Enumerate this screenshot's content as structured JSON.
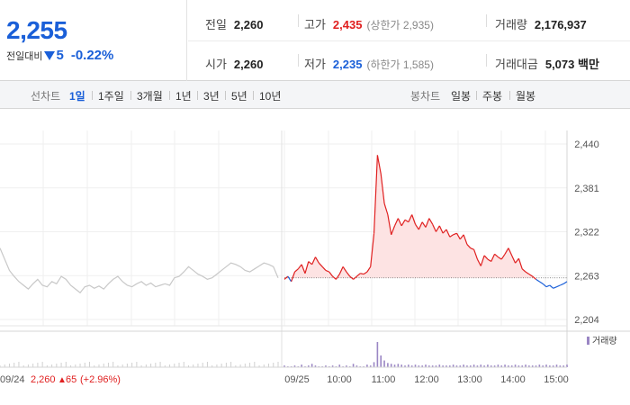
{
  "quote": {
    "price": "2,255",
    "change_label": "전일대비",
    "change_value": "5",
    "change_pct": "-0.22%",
    "prev_close": {
      "label": "전일",
      "value": "2,260"
    },
    "open": {
      "label": "시가",
      "value": "2,260"
    },
    "high": {
      "label": "고가",
      "value": "2,435",
      "limit_text": "(상한가 2,935)"
    },
    "low": {
      "label": "저가",
      "value": "2,235",
      "limit_text": "(하한가 1,585)"
    },
    "volume": {
      "label": "거래량",
      "value": "2,176,937"
    },
    "trade_amount": {
      "label": "거래대금",
      "value": "5,073 백만"
    }
  },
  "toolbar": {
    "line_chart_label": "선차트",
    "periods": [
      "1일",
      "1주일",
      "3개월",
      "1년",
      "3년",
      "5년",
      "10년"
    ],
    "active_period": "1일",
    "candle_chart_label": "봉차트",
    "candle_periods": [
      "일봉",
      "주봉",
      "월봉"
    ]
  },
  "colors": {
    "up": "#e02020",
    "down": "#1a5fd8",
    "prev_day_line": "#c8c8c8",
    "up_fill": "#fde3e3",
    "volume_bar": "#9a86c4"
  },
  "chart_data": {
    "type": "line",
    "y_ticks": [
      "2,440",
      "2,381",
      "2,322",
      "2,263",
      "2,204"
    ],
    "ylim": [
      2204,
      2440
    ],
    "base_price": 2260,
    "x_tick_labels": [
      "09/25",
      "10:00",
      "11:00",
      "12:00",
      "13:00",
      "14:00",
      "15:00"
    ],
    "prev_day_label": "09/24",
    "prev_day_close": "2,260",
    "prev_day_change": "65",
    "prev_day_change_pct": "(+2.96%)",
    "volume_legend": "거래량",
    "prev_day_series": {
      "name": "09/24",
      "values": [
        2300,
        2285,
        2270,
        2262,
        2255,
        2250,
        2245,
        2252,
        2258,
        2250,
        2248,
        2255,
        2252,
        2262,
        2258,
        2250,
        2245,
        2240,
        2248,
        2250,
        2246,
        2249,
        2245,
        2252,
        2258,
        2262,
        2255,
        2250,
        2248,
        2252,
        2255,
        2250,
        2253,
        2248,
        2250,
        2252,
        2250,
        2260,
        2262,
        2268,
        2275,
        2270,
        2265,
        2262,
        2258,
        2260,
        2265,
        2270,
        2275,
        2280,
        2278,
        2275,
        2270,
        2268,
        2272,
        2276,
        2280,
        2278,
        2275,
        2260
      ]
    },
    "today_series": {
      "name": "09/25",
      "values": [
        2258,
        2262,
        2255,
        2268,
        2272,
        2278,
        2266,
        2282,
        2278,
        2288,
        2280,
        2275,
        2270,
        2268,
        2262,
        2258,
        2265,
        2275,
        2268,
        2262,
        2258,
        2262,
        2266,
        2265,
        2268,
        2275,
        2320,
        2425,
        2400,
        2360,
        2345,
        2318,
        2330,
        2340,
        2330,
        2338,
        2335,
        2345,
        2332,
        2325,
        2335,
        2328,
        2340,
        2332,
        2322,
        2330,
        2320,
        2325,
        2315,
        2318,
        2320,
        2312,
        2318,
        2305,
        2300,
        2298,
        2285,
        2276,
        2290,
        2285,
        2282,
        2292,
        2288,
        2285,
        2292,
        2300,
        2290,
        2280,
        2286,
        2272,
        2268,
        2265,
        2262,
        2258,
        2255,
        2252,
        2248,
        2250,
        2246,
        2248,
        2250,
        2252,
        2255
      ]
    },
    "volume": [
      2,
      1,
      1,
      2,
      1,
      3,
      1,
      2,
      4,
      2,
      1,
      1,
      2,
      1,
      2,
      1,
      3,
      1,
      2,
      1,
      4,
      2,
      1,
      1,
      3,
      2,
      6,
      30,
      14,
      8,
      5,
      4,
      3,
      4,
      3,
      2,
      3,
      2,
      3,
      2,
      2,
      3,
      2,
      2,
      2,
      3,
      2,
      2,
      2,
      3,
      2,
      2,
      3,
      2,
      2,
      3,
      2,
      3,
      2,
      3,
      2,
      2,
      3,
      2,
      3,
      2,
      2,
      3,
      2,
      2,
      3,
      2,
      2,
      2,
      3,
      2,
      3,
      2,
      2,
      3,
      2,
      2,
      3
    ]
  }
}
